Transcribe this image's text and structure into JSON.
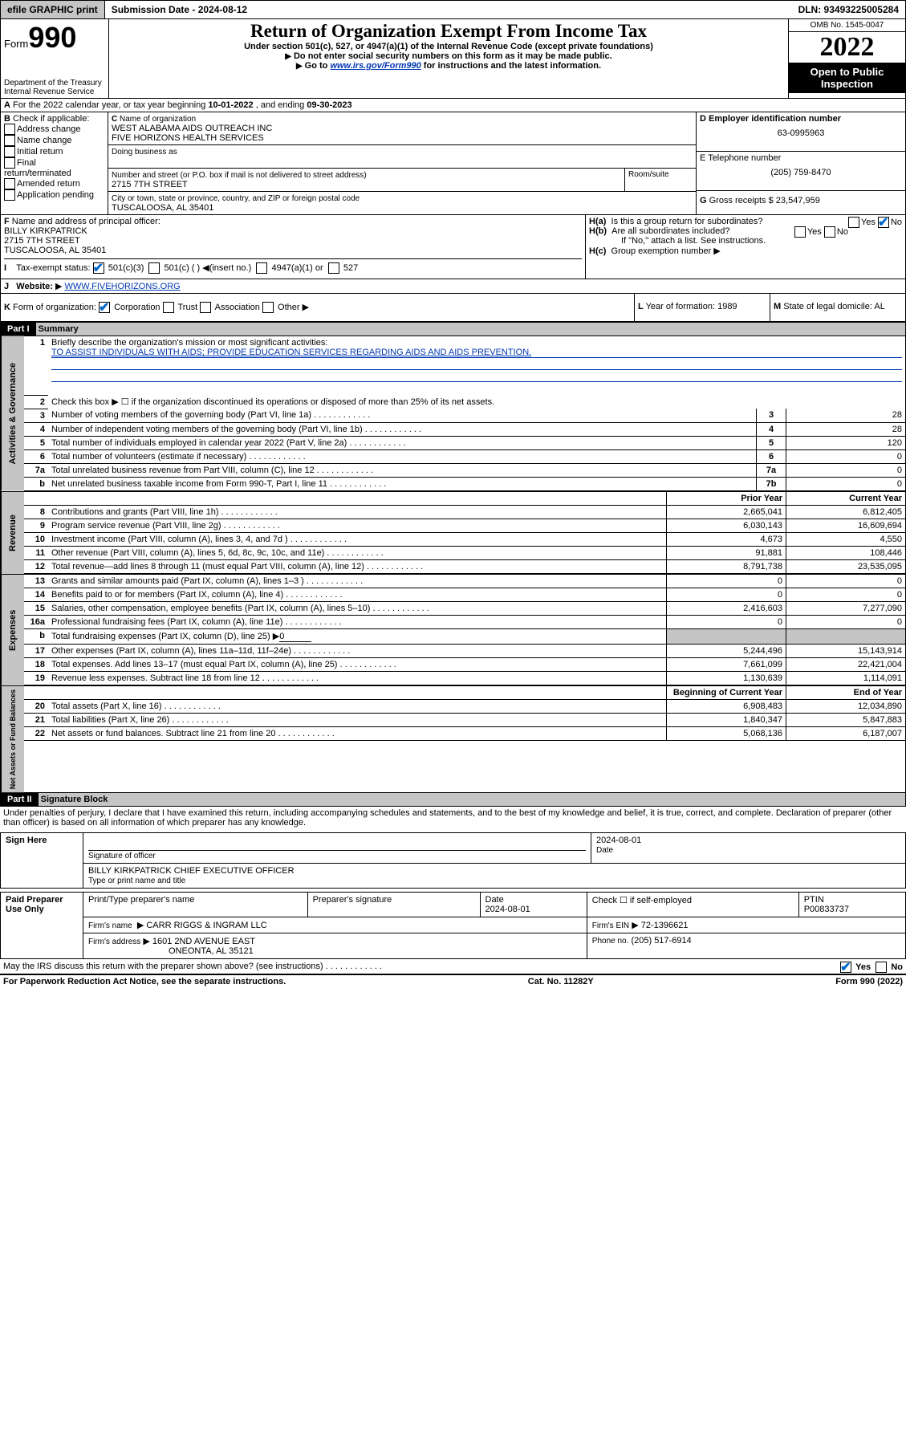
{
  "topbar": {
    "efile": "efile GRAPHIC print",
    "subLbl": "Submission Date - ",
    "subDate": "2024-08-12",
    "dln": "DLN: 93493225005284"
  },
  "header": {
    "form": "Form",
    "num": "990",
    "dept": "Department of the Treasury",
    "irs": "Internal Revenue Service",
    "title": "Return of Organization Exempt From Income Tax",
    "sub1": "Under section 501(c), 527, or 4947(a)(1) of the Internal Revenue Code (except private foundations)",
    "sub2": "Do not enter social security numbers on this form as it may be made public.",
    "sub3": "Go to ",
    "sub3link": "www.irs.gov/Form990",
    "sub3b": " for instructions and the latest information.",
    "omb": "OMB No. 1545-0047",
    "year": "2022",
    "open": "Open to Public Inspection"
  },
  "A": {
    "pre": "For the 2022 calendar year, or tax year beginning ",
    "begin": "10-01-2022",
    "mid": " , and ending ",
    "end": "09-30-2023"
  },
  "B": {
    "label": "Check if applicable:",
    "opts": [
      "Address change",
      "Name change",
      "Initial return",
      "Final return/terminated",
      "Amended return",
      "Application pending"
    ]
  },
  "C": {
    "nameLbl": "Name of organization",
    "name1": "WEST ALABAMA AIDS OUTREACH INC",
    "name2": "FIVE HORIZONS HEALTH SERVICES",
    "dbaLbl": "Doing business as",
    "addrLbl": "Number and street (or P.O. box if mail is not delivered to street address)",
    "room": "Room/suite",
    "addr": "2715 7TH STREET",
    "cityLbl": "City or town, state or province, country, and ZIP or foreign postal code",
    "city": "TUSCALOOSA, AL  35401"
  },
  "D": {
    "lbl": "Employer identification number",
    "val": "63-0995963"
  },
  "E": {
    "lbl": "E Telephone number",
    "val": "(205) 759-8470"
  },
  "G": {
    "lbl": "Gross receipts $",
    "val": "23,547,959"
  },
  "F": {
    "lbl": "Name and address of principal officer:",
    "name": "BILLY KIRKPATRICK",
    "addr": "2715 7TH STREET",
    "city": "TUSCALOOSA, AL  35401"
  },
  "H": {
    "a": "Is this a group return for subordinates?",
    "aNo": "No",
    "aYes": "Yes",
    "b": "Are all subordinates included?",
    "bYes": "Yes",
    "bNo": "No",
    "bnote": "If \"No,\" attach a list. See instructions.",
    "c": "Group exemption number"
  },
  "I": {
    "lbl": "Tax-exempt status:",
    "o1": "501(c)(3)",
    "o2": "501(c) (  )",
    "o2b": "(insert no.)",
    "o3": "4947(a)(1) or",
    "o4": "527"
  },
  "J": {
    "lbl": "Website:",
    "val": "WWW.FIVEHORIZONS.ORG"
  },
  "K": {
    "lbl": "Form of organization:",
    "o": [
      "Corporation",
      "Trust",
      "Association",
      "Other"
    ]
  },
  "L": {
    "lbl": "Year of formation:",
    "val": "1989"
  },
  "M": {
    "lbl": "State of legal domicile:",
    "val": "AL"
  },
  "part1": {
    "hdr": "Part I",
    "title": "Summary"
  },
  "mission": {
    "q": "Briefly describe the organization's mission or most significant activities:",
    "a": "TO ASSIST INDIVIDUALS WITH AIDS; PROVIDE EDUCATION SERVICES REGARDING AIDS AND AIDS PREVENTION."
  },
  "line2": "Check this box ▶ ☐ if the organization discontinued its operations or disposed of more than 25% of its net assets.",
  "gov": [
    {
      "n": "3",
      "t": "Number of voting members of the governing body (Part VI, line 1a)",
      "b": "3",
      "v": "28"
    },
    {
      "n": "4",
      "t": "Number of independent voting members of the governing body (Part VI, line 1b)",
      "b": "4",
      "v": "28"
    },
    {
      "n": "5",
      "t": "Total number of individuals employed in calendar year 2022 (Part V, line 2a)",
      "b": "5",
      "v": "120"
    },
    {
      "n": "6",
      "t": "Total number of volunteers (estimate if necessary)",
      "b": "6",
      "v": "0"
    },
    {
      "n": "7a",
      "t": "Total unrelated business revenue from Part VIII, column (C), line 12",
      "b": "7a",
      "v": "0"
    },
    {
      "n": "b",
      "t": "Net unrelated business taxable income from Form 990-T, Part I, line 11",
      "b": "7b",
      "v": "0"
    }
  ],
  "yrHdr": {
    "p": "Prior Year",
    "c": "Current Year"
  },
  "rev": [
    {
      "n": "8",
      "t": "Contributions and grants (Part VIII, line 1h)",
      "p": "2,665,041",
      "c": "6,812,405"
    },
    {
      "n": "9",
      "t": "Program service revenue (Part VIII, line 2g)",
      "p": "6,030,143",
      "c": "16,609,694"
    },
    {
      "n": "10",
      "t": "Investment income (Part VIII, column (A), lines 3, 4, and 7d )",
      "p": "4,673",
      "c": "4,550"
    },
    {
      "n": "11",
      "t": "Other revenue (Part VIII, column (A), lines 5, 6d, 8c, 9c, 10c, and 11e)",
      "p": "91,881",
      "c": "108,446"
    },
    {
      "n": "12",
      "t": "Total revenue—add lines 8 through 11 (must equal Part VIII, column (A), line 12)",
      "p": "8,791,738",
      "c": "23,535,095"
    }
  ],
  "exp": [
    {
      "n": "13",
      "t": "Grants and similar amounts paid (Part IX, column (A), lines 1–3 )",
      "p": "0",
      "c": "0"
    },
    {
      "n": "14",
      "t": "Benefits paid to or for members (Part IX, column (A), line 4)",
      "p": "0",
      "c": "0"
    },
    {
      "n": "15",
      "t": "Salaries, other compensation, employee benefits (Part IX, column (A), lines 5–10)",
      "p": "2,416,603",
      "c": "7,277,090"
    },
    {
      "n": "16a",
      "t": "Professional fundraising fees (Part IX, column (A), line 11e)",
      "p": "0",
      "c": "0"
    },
    {
      "n": "b",
      "t": "Total fundraising expenses (Part IX, column (D), line 25) ▶",
      "b": "0",
      "grey": true
    },
    {
      "n": "17",
      "t": "Other expenses (Part IX, column (A), lines 11a–11d, 11f–24e)",
      "p": "5,244,496",
      "c": "15,143,914"
    },
    {
      "n": "18",
      "t": "Total expenses. Add lines 13–17 (must equal Part IX, column (A), line 25)",
      "p": "7,661,099",
      "c": "22,421,004"
    },
    {
      "n": "19",
      "t": "Revenue less expenses. Subtract line 18 from line 12",
      "p": "1,130,639",
      "c": "1,114,091"
    }
  ],
  "netHdr": {
    "p": "Beginning of Current Year",
    "c": "End of Year"
  },
  "net": [
    {
      "n": "20",
      "t": "Total assets (Part X, line 16)",
      "p": "6,908,483",
      "c": "12,034,890"
    },
    {
      "n": "21",
      "t": "Total liabilities (Part X, line 26)",
      "p": "1,840,347",
      "c": "5,847,883"
    },
    {
      "n": "22",
      "t": "Net assets or fund balances. Subtract line 21 from line 20",
      "p": "5,068,136",
      "c": "6,187,007"
    }
  ],
  "sections": {
    "gov": "Activities & Governance",
    "rev": "Revenue",
    "exp": "Expenses",
    "net": "Net Assets or Fund Balances"
  },
  "part2": {
    "hdr": "Part II",
    "title": "Signature Block",
    "decl": "Under penalties of perjury, I declare that I have examined this return, including accompanying schedules and statements, and to the best of my knowledge and belief, it is true, correct, and complete. Declaration of preparer (other than officer) is based on all information of which preparer has any knowledge."
  },
  "sign": {
    "here": "Sign Here",
    "sigOf": "Signature of officer",
    "date": "Date",
    "dateVal": "2024-08-01",
    "name": "BILLY KIRKPATRICK  CHIEF EXECUTIVE OFFICER",
    "nameLbl": "Type or print name and title"
  },
  "prep": {
    "hdr": "Paid Preparer Use Only",
    "c1": "Print/Type preparer's name",
    "c2": "Preparer's signature",
    "c3": "Date",
    "c3v": "2024-08-01",
    "c4": "Check ☐ if self-employed",
    "c5": "PTIN",
    "c5v": "P00833737",
    "firmLbl": "Firm's name",
    "firm": "CARR RIGGS & INGRAM LLC",
    "einLbl": "Firm's EIN",
    "ein": "72-1396621",
    "addrLbl": "Firm's address",
    "addr1": "1601 2ND AVENUE EAST",
    "addr2": "ONEONTA, AL  35121",
    "phLbl": "Phone no.",
    "ph": "(205) 517-6914"
  },
  "discuss": {
    "q": "May the IRS discuss this return with the preparer shown above? (see instructions)",
    "y": "Yes",
    "n": "No"
  },
  "footer": {
    "l": "For Paperwork Reduction Act Notice, see the separate instructions.",
    "m": "Cat. No. 11282Y",
    "r": "Form 990 (2022)"
  }
}
